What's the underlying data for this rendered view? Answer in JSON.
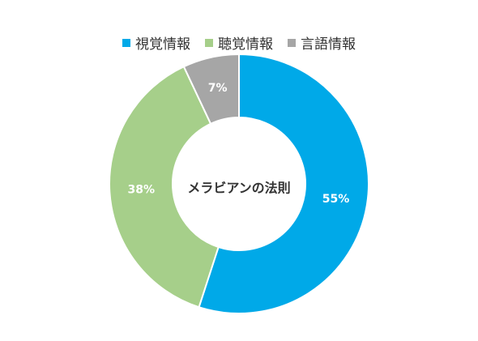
{
  "chart_data": {
    "type": "pie",
    "donut": true,
    "center_label": "メラビアンの法則",
    "categories": [
      "視覚情報",
      "聴覚情報",
      "言語情報"
    ],
    "values": [
      55,
      38,
      7
    ],
    "data_labels": [
      "55%",
      "38%",
      "7%"
    ],
    "colors": [
      "#00a9e8",
      "#a6cf8a",
      "#a6a6a6"
    ],
    "legend_position": "top",
    "start_angle_deg": 0,
    "direction": "clockwise"
  }
}
